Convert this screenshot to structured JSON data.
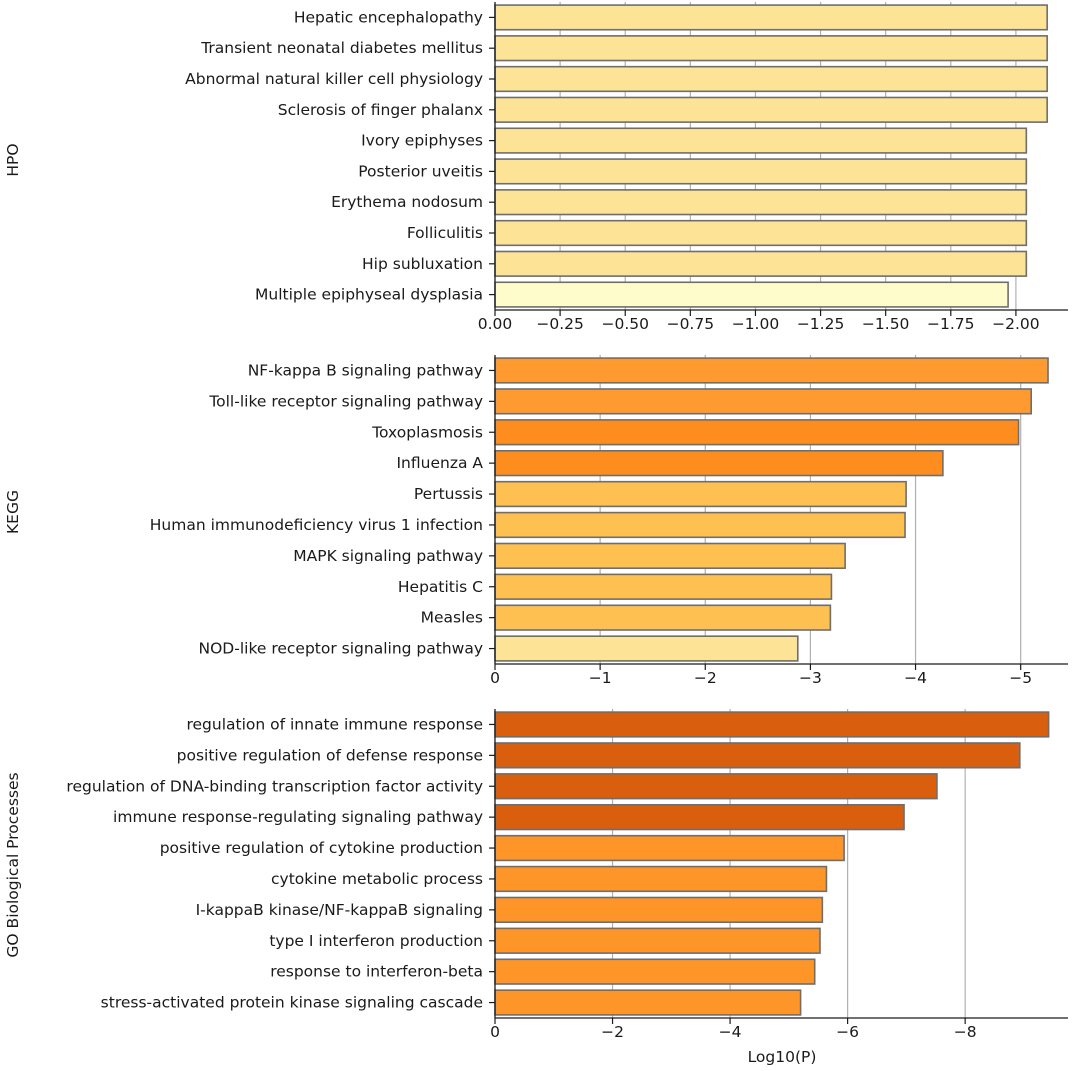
{
  "figure": {
    "xlabel": "Log10(P)"
  },
  "chart_data": [
    {
      "type": "bar",
      "orientation": "horizontal",
      "title": "HPO",
      "categories": [
        "Hepatic encephalopathy",
        "Transient neonatal diabetes mellitus",
        "Abnormal natural killer cell physiology",
        "Sclerosis of finger phalanx",
        "Ivory epiphyses",
        "Posterior uveitis",
        "Erythema nodosum",
        "Folliculitis",
        "Hip subluxation",
        "Multiple epiphyseal dysplasia"
      ],
      "values": [
        -2.12,
        -2.12,
        -2.12,
        -2.12,
        -2.04,
        -2.04,
        -2.04,
        -2.04,
        -2.04,
        -1.97
      ],
      "colors": [
        "#fde396",
        "#fde396",
        "#fde396",
        "#fde396",
        "#fde396",
        "#fde396",
        "#fde396",
        "#fde396",
        "#fde396",
        "#fffccc"
      ],
      "xlim": [
        0,
        -2.2
      ],
      "xticks": [
        0,
        -0.25,
        -0.5,
        -0.75,
        -1.0,
        -1.25,
        -1.5,
        -1.75,
        -2.0
      ],
      "xticklabels": [
        "0.00",
        "−0.25",
        "−0.50",
        "−0.75",
        "−1.00",
        "−1.25",
        "−1.50",
        "−1.75",
        "−2.00"
      ],
      "xlabel": ""
    },
    {
      "type": "bar",
      "orientation": "horizontal",
      "title": "KEGG",
      "categories": [
        "NF-kappa B signaling pathway",
        "Toll-like receptor signaling pathway",
        "Toxoplasmosis",
        "Influenza A",
        "Pertussis",
        "Human immunodeficiency virus 1 infection",
        "MAPK signaling pathway",
        "Hepatitis C",
        "Measles",
        "NOD-like receptor signaling pathway"
      ],
      "values": [
        -5.26,
        -5.1,
        -4.98,
        -4.26,
        -3.91,
        -3.9,
        -3.33,
        -3.2,
        -3.19,
        -2.88
      ],
      "colors": [
        "#fe9a2f",
        "#fe9a2f",
        "#fd8d1e",
        "#fd8d1e",
        "#fec050",
        "#fec050",
        "#fec050",
        "#fec050",
        "#fec050",
        "#fde396"
      ],
      "xlim": [
        0,
        -5.45
      ],
      "xticks": [
        0,
        -1,
        -2,
        -3,
        -4,
        -5
      ],
      "xticklabels": [
        "0",
        "−1",
        "−2",
        "−3",
        "−4",
        "−5"
      ],
      "xlabel": ""
    },
    {
      "type": "bar",
      "orientation": "horizontal",
      "title": "GO Biological Processes",
      "categories": [
        "regulation of innate immune response",
        "positive regulation of defense response",
        "regulation of DNA-binding transcription factor activity",
        "immune response-regulating signaling pathway",
        "positive regulation of cytokine production",
        "cytokine metabolic process",
        "I-kappaB kinase/NF-kappaB signaling",
        "type I interferon production",
        "response to interferon-beta",
        "stress-activated protein kinase signaling cascade"
      ],
      "values": [
        -9.42,
        -8.93,
        -7.52,
        -6.96,
        -5.94,
        -5.64,
        -5.57,
        -5.53,
        -5.44,
        -5.2
      ],
      "colors": [
        "#d95e0e",
        "#d95e0e",
        "#d95e0e",
        "#d95e0e",
        "#fe9529",
        "#fe9529",
        "#fe9529",
        "#fe9529",
        "#fe9529",
        "#fe9529"
      ],
      "xlim": [
        0,
        -9.75
      ],
      "xticks": [
        0,
        -2,
        -4,
        -6,
        -8
      ],
      "xticklabels": [
        "0",
        "−2",
        "−4",
        "−6",
        "−8"
      ],
      "xlabel": "Log10(P)"
    }
  ]
}
